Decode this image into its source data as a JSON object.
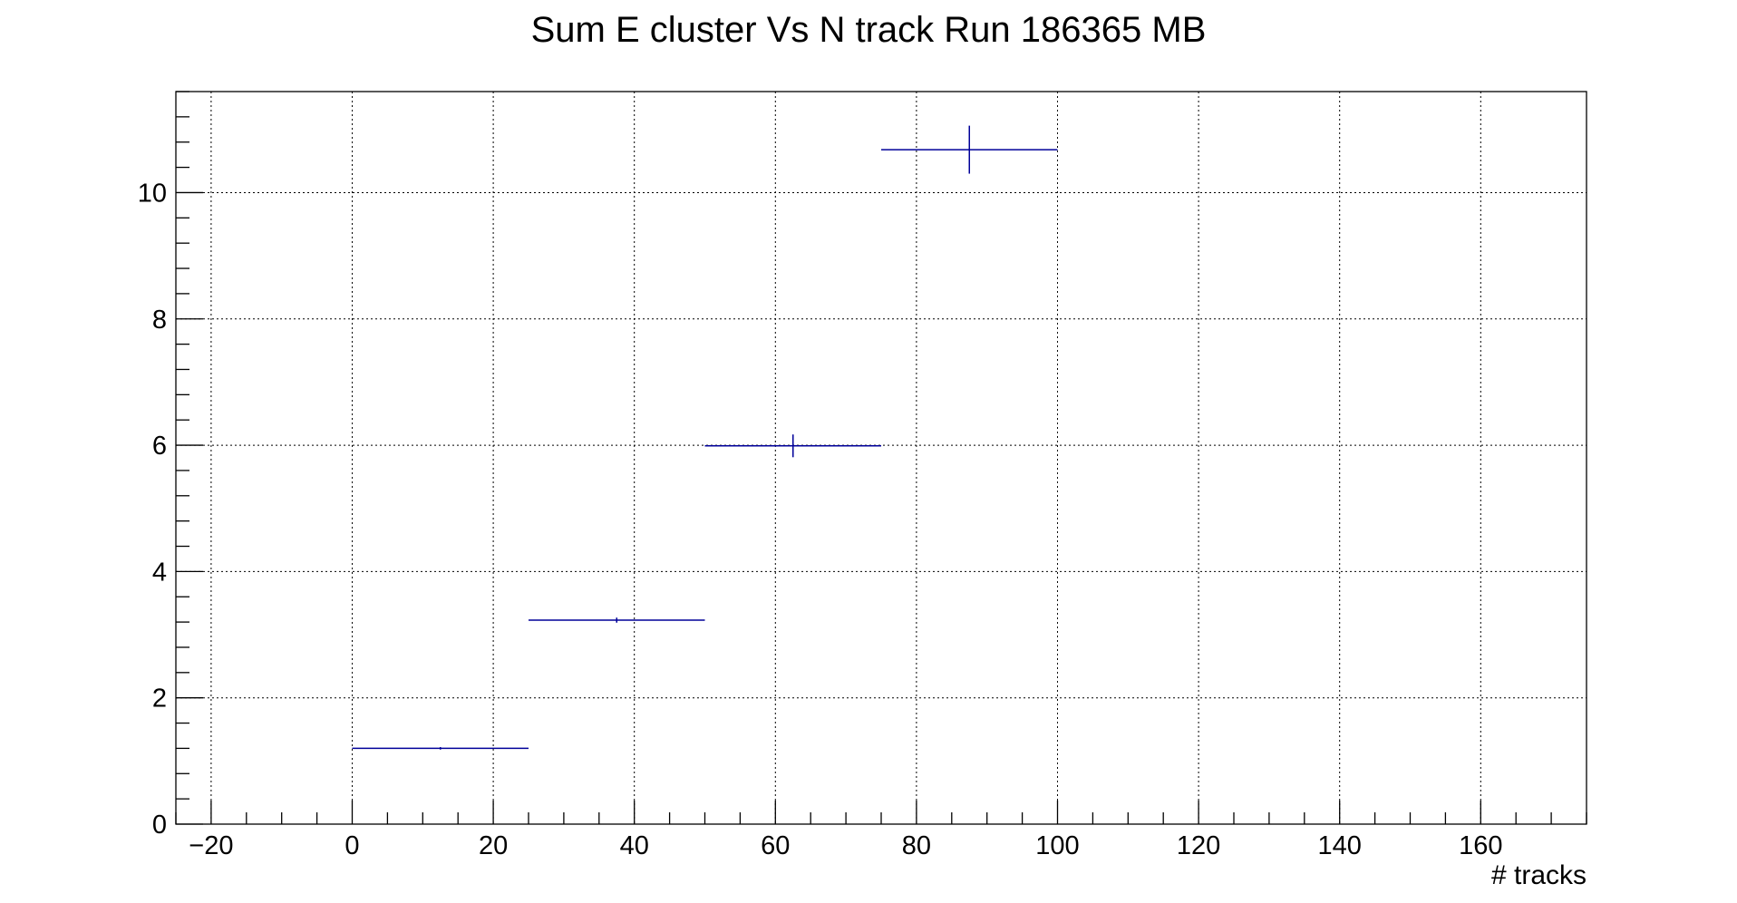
{
  "chart_data": {
    "type": "scatter",
    "title": "Sum E cluster Vs N track Run 186365 MB",
    "xlabel": "# tracks",
    "ylabel": "",
    "xlim": [
      -25,
      175
    ],
    "ylim": [
      0,
      11.6
    ],
    "x_ticks": [
      -20,
      0,
      20,
      40,
      60,
      80,
      100,
      120,
      140,
      160
    ],
    "x_tick_labels": [
      "−20",
      "0",
      "20",
      "40",
      "60",
      "80",
      "100",
      "120",
      "140",
      "160"
    ],
    "y_ticks": [
      0,
      2,
      4,
      6,
      8,
      10
    ],
    "y_tick_labels": [
      "0",
      "2",
      "4",
      "6",
      "8",
      "10"
    ],
    "grid": true,
    "legend": "none",
    "series": [
      {
        "color": "#000099",
        "points": [
          {
            "x": 12.5,
            "y": 1.2,
            "x_low": 0,
            "x_high": 25,
            "y_err": 0.02
          },
          {
            "x": 37.5,
            "y": 3.23,
            "x_low": 25,
            "x_high": 50,
            "y_err": 0.04
          },
          {
            "x": 62.5,
            "y": 5.99,
            "x_low": 50,
            "x_high": 75,
            "y_err": 0.18
          },
          {
            "x": 87.5,
            "y": 10.68,
            "x_low": 75,
            "x_high": 100,
            "y_err": 0.38
          }
        ]
      }
    ]
  }
}
